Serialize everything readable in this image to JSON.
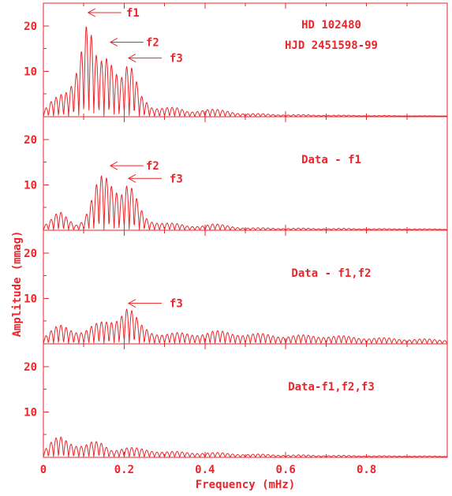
{
  "chart_data": {
    "type": "line",
    "xlabel": "Frequency (mHz)",
    "ylabel": "Amplitude (mmag)",
    "xlim": [
      0,
      1.0
    ],
    "ylim": [
      0,
      25
    ],
    "x_ticks": [
      "0",
      "0.2",
      "0.4",
      "0.6",
      "0.8"
    ],
    "y_ticks": [
      "10",
      "20"
    ],
    "colors": {
      "line": "#e8262b"
    },
    "panels": [
      {
        "labels": [
          "HD 102480",
          "HJD 2451598-99"
        ],
        "annotations": [
          {
            "text": "f1",
            "x": 0.105,
            "y": 23
          },
          {
            "text": "f2",
            "x": 0.16,
            "y": 16.5
          },
          {
            "text": "f3",
            "x": 0.205,
            "y": 13
          }
        ],
        "envelope": [
          [
            0,
            1.5
          ],
          [
            0.02,
            3.5
          ],
          [
            0.04,
            5
          ],
          [
            0.06,
            7
          ],
          [
            0.075,
            11
          ],
          [
            0.09,
            17
          ],
          [
            0.105,
            23
          ],
          [
            0.12,
            18
          ],
          [
            0.135,
            12
          ],
          [
            0.15,
            14
          ],
          [
            0.16,
            16.5
          ],
          [
            0.175,
            15
          ],
          [
            0.19,
            11
          ],
          [
            0.205,
            13
          ],
          [
            0.22,
            11
          ],
          [
            0.24,
            5
          ],
          [
            0.27,
            2.5
          ],
          [
            0.3,
            2.5
          ],
          [
            0.33,
            2
          ],
          [
            0.36,
            1.2
          ],
          [
            0.4,
            2
          ],
          [
            0.44,
            1.5
          ],
          [
            0.5,
            0.8
          ],
          [
            0.6,
            0.5
          ],
          [
            0.8,
            0.3
          ],
          [
            1.0,
            0.2
          ]
        ]
      },
      {
        "labels": [
          "Data - f1"
        ],
        "annotations": [
          {
            "text": "f2",
            "x": 0.16,
            "y": 14.3
          },
          {
            "text": "f3",
            "x": 0.205,
            "y": 11.5
          }
        ],
        "envelope": [
          [
            0,
            1
          ],
          [
            0.02,
            2.5
          ],
          [
            0.04,
            4.5
          ],
          [
            0.06,
            3.5
          ],
          [
            0.08,
            1.5
          ],
          [
            0.1,
            2.5
          ],
          [
            0.12,
            7
          ],
          [
            0.14,
            12.5
          ],
          [
            0.16,
            14.3
          ],
          [
            0.18,
            12
          ],
          [
            0.19,
            10
          ],
          [
            0.205,
            11.5
          ],
          [
            0.22,
            9.5
          ],
          [
            0.24,
            5
          ],
          [
            0.26,
            2.5
          ],
          [
            0.3,
            2
          ],
          [
            0.33,
            1.5
          ],
          [
            0.36,
            1
          ],
          [
            0.42,
            1.5
          ],
          [
            0.5,
            0.6
          ],
          [
            0.6,
            0.5
          ],
          [
            0.8,
            0.4
          ],
          [
            1.0,
            0.3
          ]
        ]
      },
      {
        "labels": [
          "Data - f1,f2"
        ],
        "annotations": [
          {
            "text": "f3",
            "x": 0.205,
            "y": 9
          }
        ],
        "envelope": [
          [
            0,
            1.5
          ],
          [
            0.02,
            3
          ],
          [
            0.04,
            4.5
          ],
          [
            0.06,
            4.5
          ],
          [
            0.08,
            3.5
          ],
          [
            0.1,
            3
          ],
          [
            0.12,
            4
          ],
          [
            0.14,
            5
          ],
          [
            0.16,
            6
          ],
          [
            0.18,
            7
          ],
          [
            0.205,
            9
          ],
          [
            0.22,
            7.5
          ],
          [
            0.24,
            4.5
          ],
          [
            0.27,
            3
          ],
          [
            0.3,
            2.5
          ],
          [
            0.33,
            2.5
          ],
          [
            0.37,
            2.5
          ],
          [
            0.42,
            3
          ],
          [
            0.5,
            2.5
          ],
          [
            0.6,
            2
          ],
          [
            0.7,
            2
          ],
          [
            0.8,
            1.5
          ],
          [
            0.9,
            1.2
          ],
          [
            1.0,
            1
          ]
        ]
      },
      {
        "labels": [
          "Data-f1,f2,f3"
        ],
        "annotations": [],
        "envelope": [
          [
            0,
            1.5
          ],
          [
            0.02,
            3.5
          ],
          [
            0.04,
            5
          ],
          [
            0.06,
            4.5
          ],
          [
            0.08,
            3.5
          ],
          [
            0.1,
            3
          ],
          [
            0.12,
            3.5
          ],
          [
            0.14,
            3.5
          ],
          [
            0.17,
            2
          ],
          [
            0.2,
            2.5
          ],
          [
            0.24,
            2
          ],
          [
            0.3,
            1.5
          ],
          [
            0.35,
            1.2
          ],
          [
            0.4,
            1.2
          ],
          [
            0.5,
            0.8
          ],
          [
            0.6,
            0.6
          ],
          [
            0.7,
            0.5
          ],
          [
            0.8,
            0.4
          ],
          [
            1.0,
            0.3
          ]
        ]
      }
    ]
  }
}
